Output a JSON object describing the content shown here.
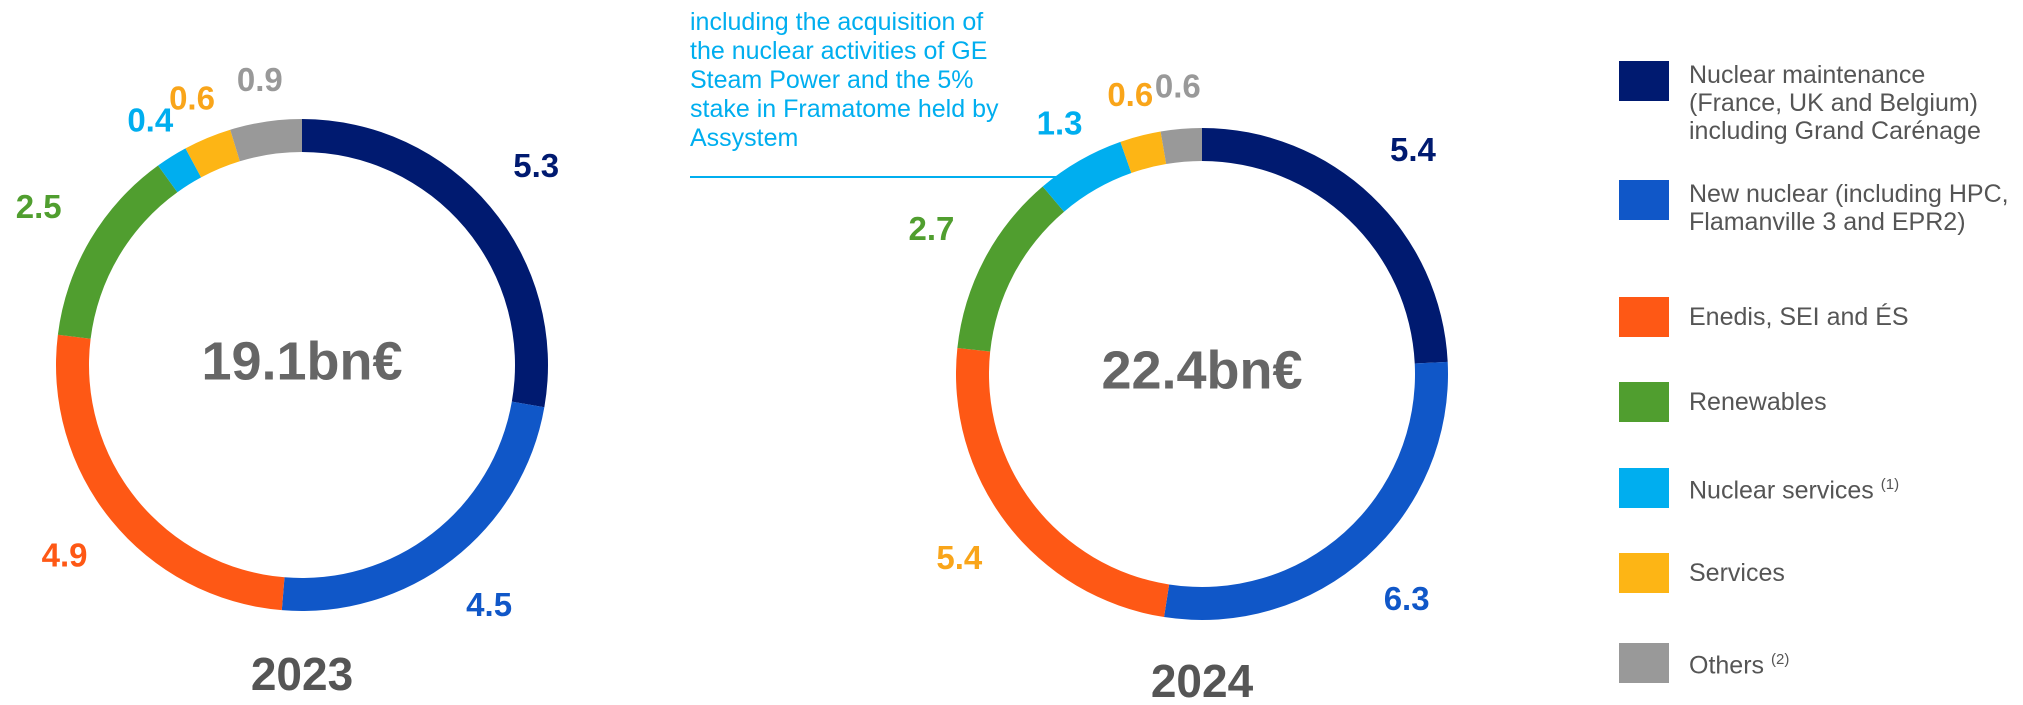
{
  "chart_data": [
    {
      "type": "pie",
      "title": "2023",
      "center_label": "19.1bn€",
      "categories": [
        "Nuclear maintenance (France, UK and Belgium) including Grand Carénage",
        "New nuclear (including HPC, Flamanville 3 and EPR2)",
        "Enedis, SEI and ÉS",
        "Renewables",
        "Nuclear services",
        "Services",
        "Others"
      ],
      "legend_notes": [
        null,
        null,
        null,
        null,
        "(1)",
        null,
        "(2)"
      ],
      "values": [
        5.3,
        4.5,
        4.9,
        2.5,
        0.4,
        0.6,
        0.9
      ],
      "colors": [
        "#001a70",
        "#1057c8",
        "#fe5815",
        "#509e2f",
        "#00aeef",
        "#fdb515",
        "#999999"
      ],
      "label_colors": [
        "#001a70",
        "#1057c8",
        "#fe5815",
        "#509e2f",
        "#00aeef",
        "#f9a51a",
        "#999999"
      ]
    },
    {
      "type": "pie",
      "title": "2024",
      "center_label": "22.4bn€",
      "annotation": "including the acquisition of the nuclear activities of GE Steam Power and the 5% stake in Framatome held by Assystem",
      "categories": [
        "Nuclear maintenance (France, UK and Belgium) including Grand Carénage",
        "New nuclear (including HPC, Flamanville 3 and EPR2)",
        "Enedis, SEI and ÉS",
        "Renewables",
        "Nuclear services",
        "Services",
        "Others"
      ],
      "values": [
        5.4,
        6.3,
        5.4,
        2.7,
        1.3,
        0.6,
        0.6
      ],
      "colors": [
        "#001a70",
        "#1057c8",
        "#fe5815",
        "#509e2f",
        "#00aeef",
        "#fdb515",
        "#999999"
      ],
      "label_colors": [
        "#001a70",
        "#1057c8",
        "#f9a51a",
        "#509e2f",
        "#00aeef",
        "#f9a51a",
        "#999999"
      ]
    }
  ]
}
